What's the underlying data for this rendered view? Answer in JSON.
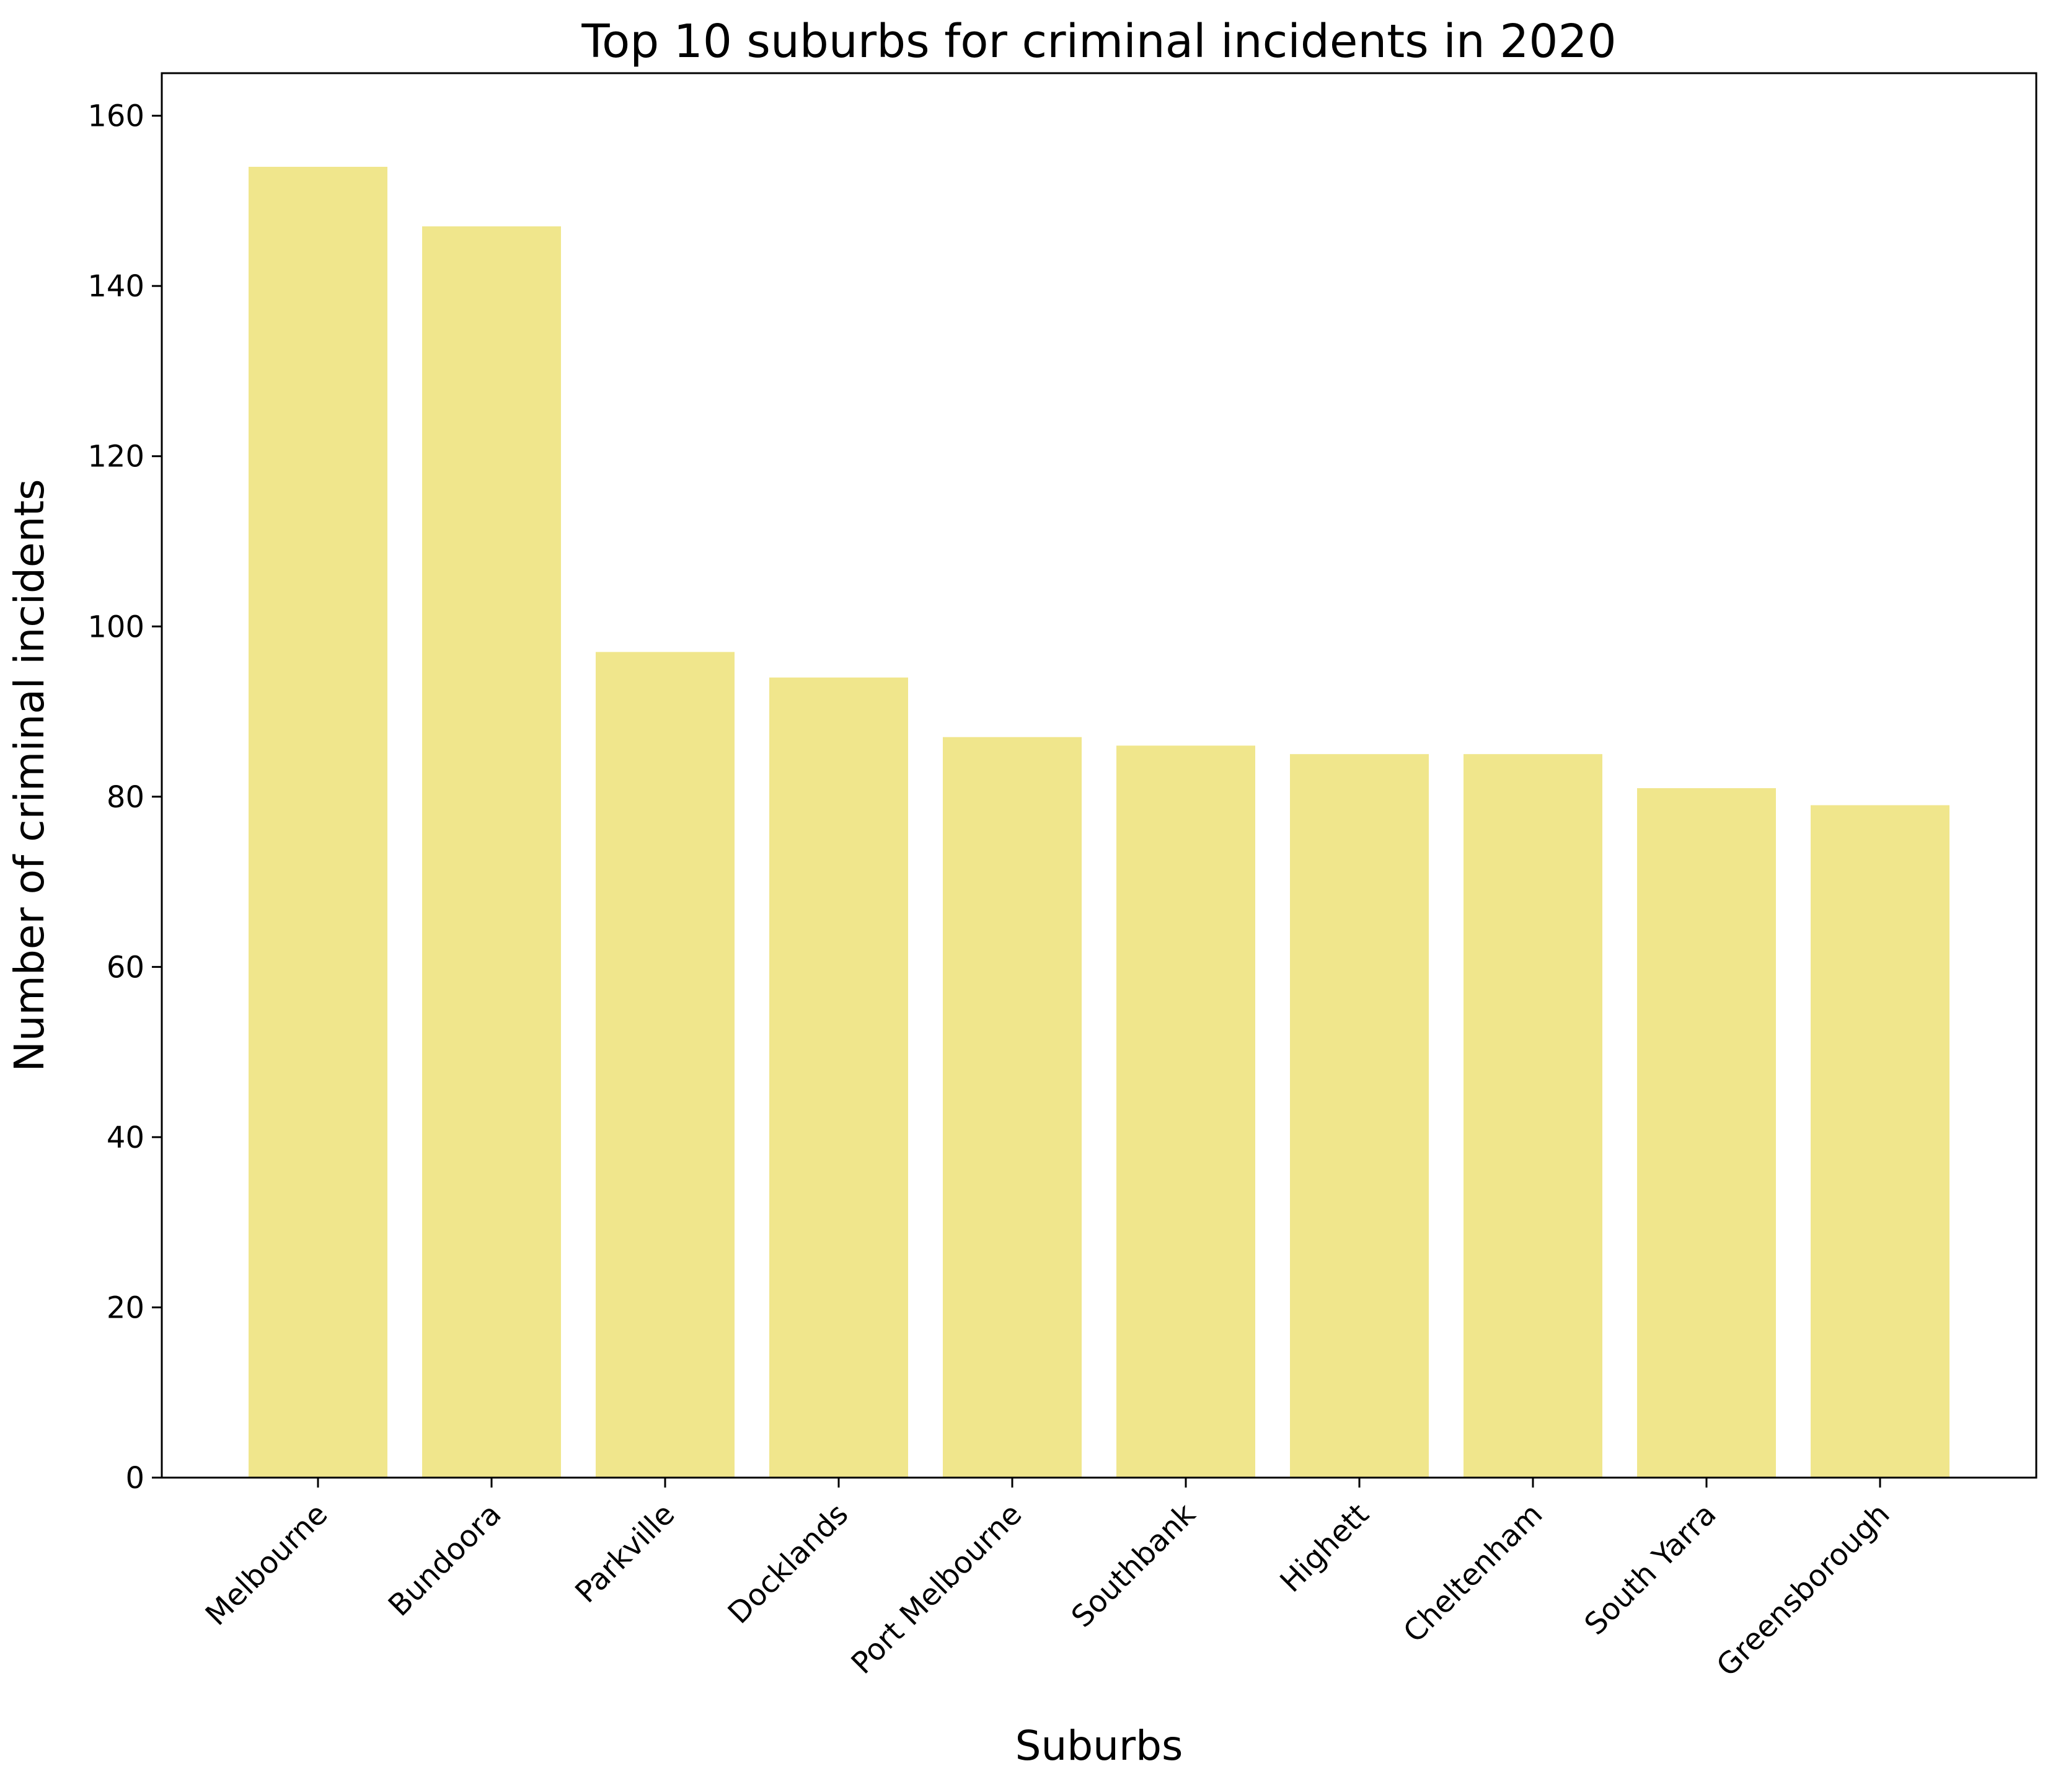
{
  "chart_data": {
    "type": "bar",
    "title": "Top 10 suburbs for criminal incidents in 2020",
    "xlabel": "Suburbs",
    "ylabel": "Number of criminal incidents",
    "categories": [
      "Melbourne",
      "Bundoora",
      "Parkville",
      "Docklands",
      "Port Melbourne",
      "Southbank",
      "Highett",
      "Cheltenham",
      "South Yarra",
      "Greensborough"
    ],
    "values": [
      154,
      147,
      97,
      94,
      87,
      86,
      85,
      85,
      81,
      79
    ],
    "ylim": [
      0,
      165
    ],
    "yticks": [
      0,
      20,
      40,
      60,
      80,
      100,
      120,
      140,
      160
    ],
    "grid": false,
    "legend": "none",
    "bar_color": "#f0e68c",
    "x_tick_rotation_degrees": 45
  }
}
